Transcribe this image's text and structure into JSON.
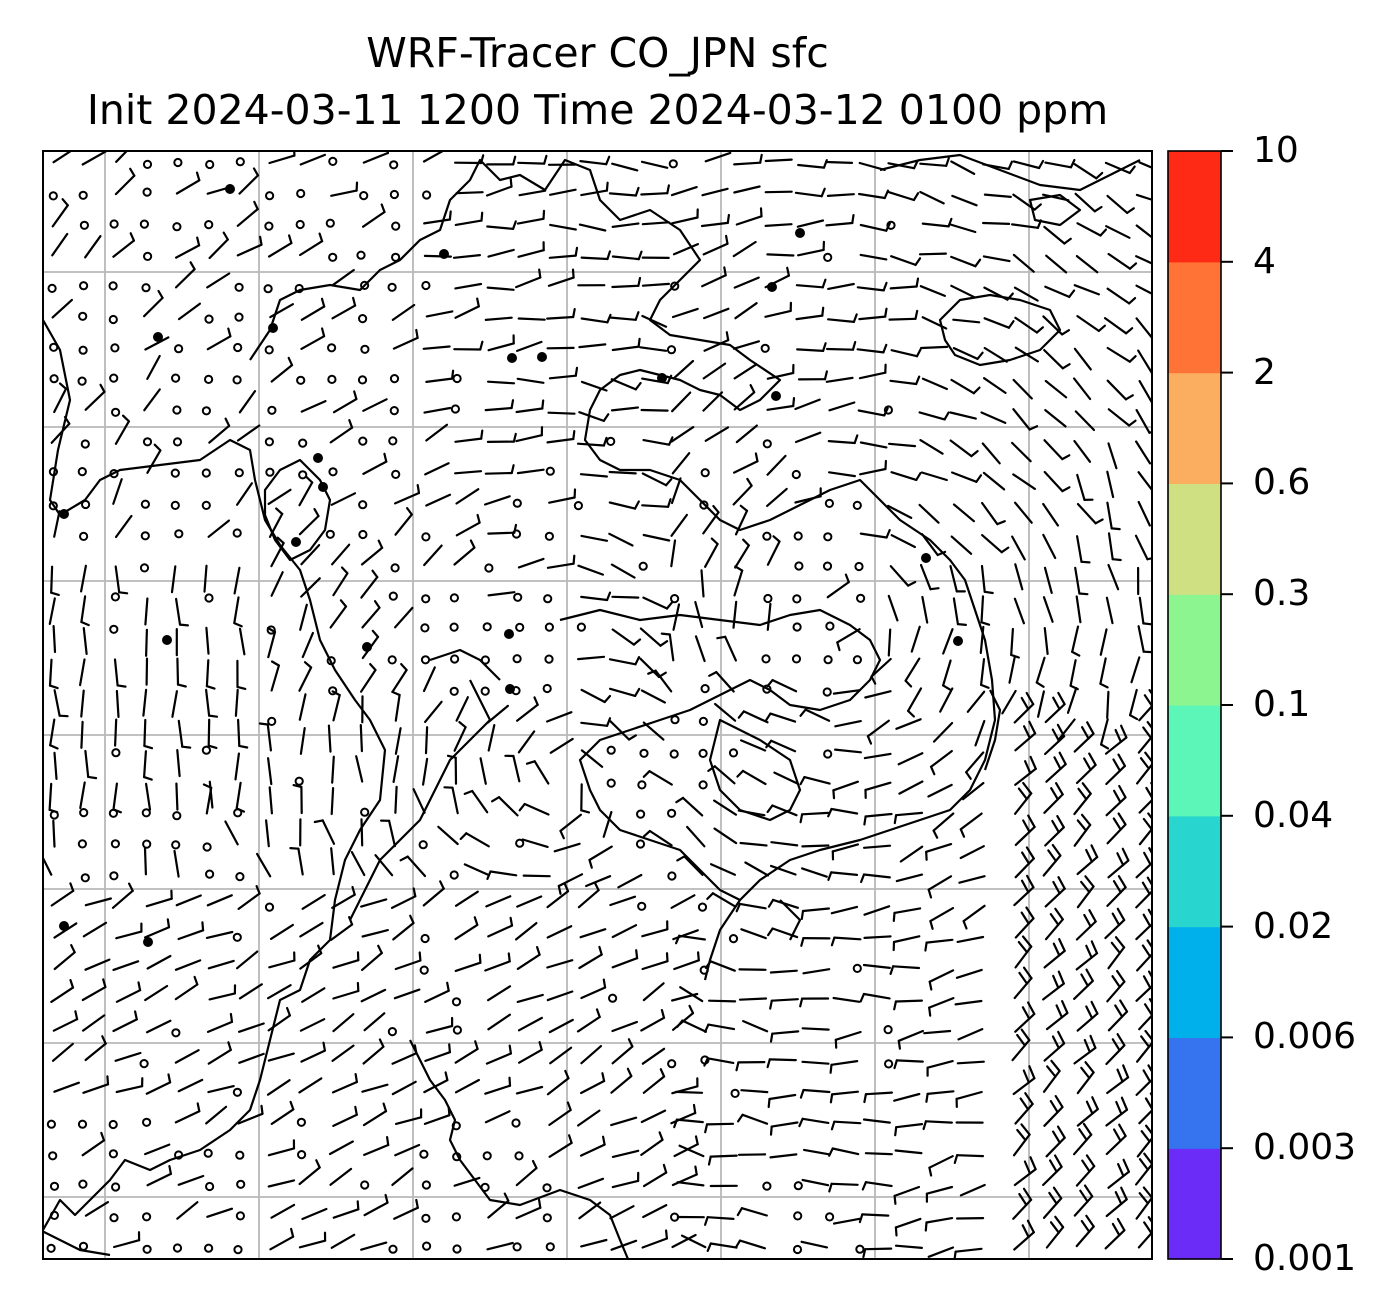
{
  "title_line1": "WRF-Tracer CO_JPN sfc",
  "title_line2": "Init 2024-03-11 1200 Time 2024-03-12 0100 ppm",
  "colorbar": {
    "levels": [
      "0.001",
      "0.003",
      "0.006",
      "0.02",
      "0.04",
      "0.1",
      "0.3",
      "0.6",
      "2",
      "4",
      "10"
    ],
    "colors": [
      "#6a2cf6",
      "#3574ee",
      "#00b0eb",
      "#28d6cf",
      "#5bf6b8",
      "#8cf58f",
      "#cfe083",
      "#fcae60",
      "#ff7436",
      "#ff2a15"
    ]
  },
  "map": {
    "content": "surface wind barbs over coastlines with lat/lon gridlines",
    "gridline_color": "#b8b8b8",
    "coastline_color": "#000000"
  }
}
